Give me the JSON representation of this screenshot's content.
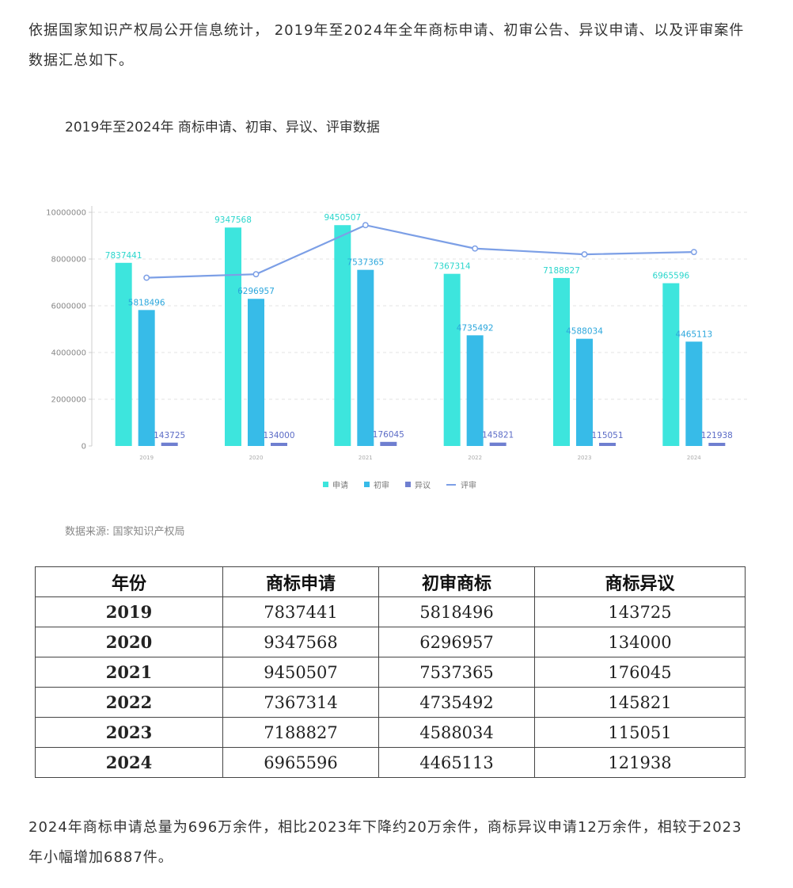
{
  "article": {
    "intro": "依据国家知识产权局公开信息统计， 2019年至2024年全年商标申请、初审公告、异议申请、以及评审案件数据汇总如下。",
    "outro": "2024年商标申请总量为696万余件，相比2023年下降约20万余件，商标异议申请12万余件，相较于2023年小幅增加6887件。"
  },
  "chart_data": {
    "type": "bar",
    "title": "2019年至2024年 商标申请、初审、异议、评审数据",
    "source": "数据来源: 国家知识产权局",
    "categories": [
      "2019",
      "2020",
      "2021",
      "2022",
      "2023",
      "2024"
    ],
    "yticks": [
      "0",
      "2000000",
      "4000000",
      "6000000",
      "8000000",
      "10000000"
    ],
    "ylim": [
      0,
      10000000
    ],
    "grid": true,
    "legend_position": "bottom",
    "series": [
      {
        "name": "申请",
        "kind": "bar",
        "color": "#3de5dd",
        "label_color": "#2ad6cc",
        "values": [
          7837441,
          9347568,
          9450507,
          7367314,
          7188827,
          6965596
        ]
      },
      {
        "name": "初审",
        "kind": "bar",
        "color": "#37bbe8",
        "label_color": "#2aa6dc",
        "values": [
          5818496,
          6296957,
          7537365,
          4735492,
          4588034,
          4465113
        ]
      },
      {
        "name": "异议",
        "kind": "bar",
        "color": "#6f7fd0",
        "label_color": "#5b6bc6",
        "values": [
          143725,
          134000,
          176045,
          145821,
          115051,
          121938
        ]
      },
      {
        "name": "评审",
        "kind": "line",
        "color": "#7c9fe6",
        "values": [
          7200000,
          7350000,
          9450000,
          8450000,
          8200000,
          8300000
        ]
      }
    ]
  },
  "table": {
    "headers": [
      "年份",
      "商标申请",
      "初审商标",
      "商标异议"
    ],
    "rows": [
      [
        "2019",
        "7837441",
        "5818496",
        "143725"
      ],
      [
        "2020",
        "9347568",
        "6296957",
        "134000"
      ],
      [
        "2021",
        "9450507",
        "7537365",
        "176045"
      ],
      [
        "2022",
        "7367314",
        "4735492",
        "145821"
      ],
      [
        "2023",
        "7188827",
        "4588034",
        "115051"
      ],
      [
        "2024",
        "6965596",
        "4465113",
        "121938"
      ]
    ]
  }
}
